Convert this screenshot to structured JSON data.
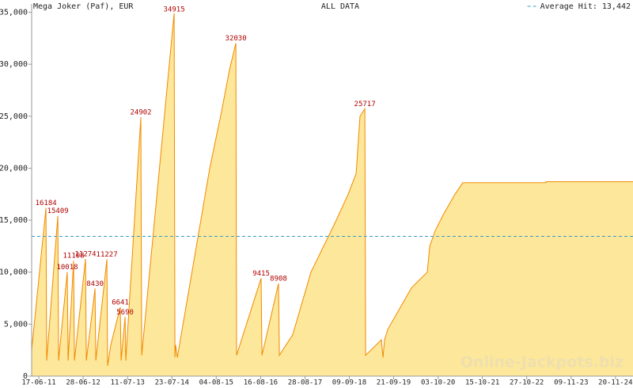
{
  "chart_data": {
    "type": "area",
    "title": "Mega Joker (Paf), EUR",
    "subtitle": "ALL DATA",
    "watermark": "Online-Jackpots.biz",
    "date_format": "dd-mm-yy",
    "line_color": "#f08a00",
    "fill_color": "#fde79a",
    "x": [
      "17-04-11",
      "17-08-11",
      "23-08-11",
      "26-11-11",
      "02-12-11",
      "14-02-12",
      "21-02-12",
      "08-04-12",
      "15-04-12",
      "18-07-12",
      "25-07-12",
      "07-10-12",
      "14-10-12",
      "16-01-13",
      "22-01-13",
      "18-02-13",
      "10-05-13",
      "17-05-13",
      "20-06-13",
      "26-06-13",
      "01-11-13",
      "08-11-13",
      "11-08-14",
      "18-08-14",
      "24-08-14",
      "07-09-14",
      "10-06-15",
      "19-09-15",
      "25-11-15",
      "18-01-16",
      "24-01-16",
      "20-08-16",
      "27-08-16",
      "15-01-17",
      "22-01-17",
      "16-05-17",
      "18-10-17",
      "21-05-18",
      "30-08-18",
      "06-11-18",
      "09-12-18",
      "19-01-19",
      "26-01-19",
      "09-06-19",
      "23-06-19",
      "06-07-19",
      "02-08-19",
      "20-02-20",
      "03-07-20",
      "24-07-20",
      "09-09-20",
      "15-11-20",
      "24-02-21",
      "02-05-21",
      "09-04-23",
      "10-04-23",
      "18-04-25"
    ],
    "values": [
      2500,
      16184,
      1500,
      15409,
      1500,
      10018,
      1500,
      11108,
      1500,
      11274,
      1500,
      8430,
      1500,
      11227,
      1000,
      3000,
      6641,
      1500,
      5690,
      1500,
      24902,
      2000,
      34915,
      1800,
      3000,
      1800,
      20000,
      25500,
      29500,
      32030,
      2000,
      9415,
      2000,
      8908,
      2000,
      4000,
      10000,
      15000,
      17500,
      19500,
      25000,
      25717,
      2000,
      3500,
      1800,
      3500,
      4500,
      8500,
      10000,
      12500,
      14000,
      15500,
      17500,
      18600,
      18600,
      18700,
      18700
    ],
    "annotations": [
      {
        "x": "17-08-11",
        "value": 16184
      },
      {
        "x": "26-11-11",
        "value": 15409
      },
      {
        "x": "14-02-12",
        "value": 10018
      },
      {
        "x": "08-04-12",
        "value": 11108
      },
      {
        "x": "18-07-12",
        "value": 11274
      },
      {
        "x": "07-10-12",
        "value": 8430
      },
      {
        "x": "16-01-13",
        "value": 11227
      },
      {
        "x": "10-05-13",
        "value": 6641
      },
      {
        "x": "20-06-13",
        "value": 5690
      },
      {
        "x": "01-11-13",
        "value": 24902
      },
      {
        "x": "11-08-14",
        "value": 34915
      },
      {
        "x": "18-01-16",
        "value": 32030
      },
      {
        "x": "20-08-16",
        "value": 9415
      },
      {
        "x": "15-01-17",
        "value": 8908
      },
      {
        "x": "19-01-19",
        "value": 25717
      }
    ],
    "average": {
      "value": 13442,
      "label": "Average Hit: 13,442",
      "color": "#3c9cc4"
    },
    "xlim": [
      "17-04-11",
      "18-04-25"
    ],
    "xticks": [
      "17-06-11",
      "28-06-12",
      "11-07-13",
      "23-07-14",
      "04-08-15",
      "16-08-16",
      "28-08-17",
      "09-09-18",
      "21-09-19",
      "03-10-20",
      "15-10-21",
      "27-10-22",
      "09-11-23",
      "20-11-24"
    ],
    "ylim": [
      0,
      35800
    ],
    "yticks": [
      0,
      {
        "value": 5000,
        "label": "5,000"
      },
      {
        "value": 10000,
        "label": "10,000"
      },
      {
        "value": 15000,
        "label": "15,000"
      },
      {
        "value": 20000,
        "label": "20,000"
      },
      {
        "value": 25000,
        "label": "25,000"
      },
      {
        "value": 30000,
        "label": "30,000"
      },
      {
        "value": 35000,
        "label": "35,000"
      }
    ]
  }
}
